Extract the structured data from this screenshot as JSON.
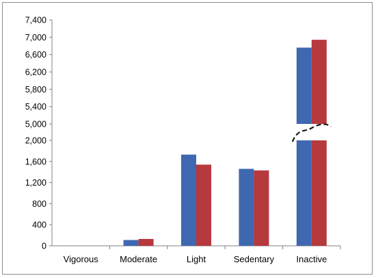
{
  "chart_data": {
    "type": "bar",
    "categories": [
      "Vigorous",
      "Moderate",
      "Light",
      "Sedentary",
      "Inactive"
    ],
    "series": [
      {
        "values": [
          0,
          110,
          1730,
          1460,
          6760
        ],
        "color": "#4068b0"
      },
      {
        "values": [
          0,
          130,
          1540,
          1430,
          6940
        ],
        "color": "#b6393e"
      }
    ],
    "axis_break": true,
    "lower_axis": {
      "ylim": [
        0,
        2000
      ],
      "ticks": [
        "0",
        "400",
        "800",
        "1,200",
        "1,600",
        "2,000"
      ]
    },
    "upper_axis": {
      "ylim": [
        5000,
        7400
      ],
      "ticks": [
        "5,000",
        "5,400",
        "5,800",
        "6,200",
        "6,600",
        "7,000",
        "7,400"
      ]
    },
    "grid": false,
    "legend": false
  }
}
